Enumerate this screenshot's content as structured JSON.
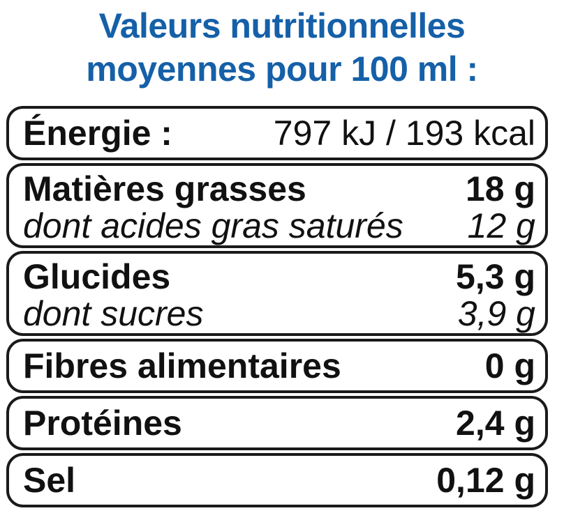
{
  "title": {
    "line1": "Valeurs nutritionnelles",
    "line2": "moyennes pour 100 ml :"
  },
  "rows": {
    "energie": {
      "label": "Énergie :",
      "value": "797 kJ / 193 kcal"
    },
    "matieres_grasses": {
      "label": "Matières grasses",
      "value": "18 g"
    },
    "acides_gras_satures": {
      "label": "dont acides gras saturés",
      "value": "12 g"
    },
    "glucides": {
      "label": "Glucides",
      "value": "5,3 g"
    },
    "sucres": {
      "label": "dont sucres",
      "value": "3,9 g"
    },
    "fibres": {
      "label": "Fibres alimentaires",
      "value": "0 g"
    },
    "proteines": {
      "label": "Protéines",
      "value": "2,4 g"
    },
    "sel": {
      "label": "Sel",
      "value": "0,12 g"
    }
  }
}
